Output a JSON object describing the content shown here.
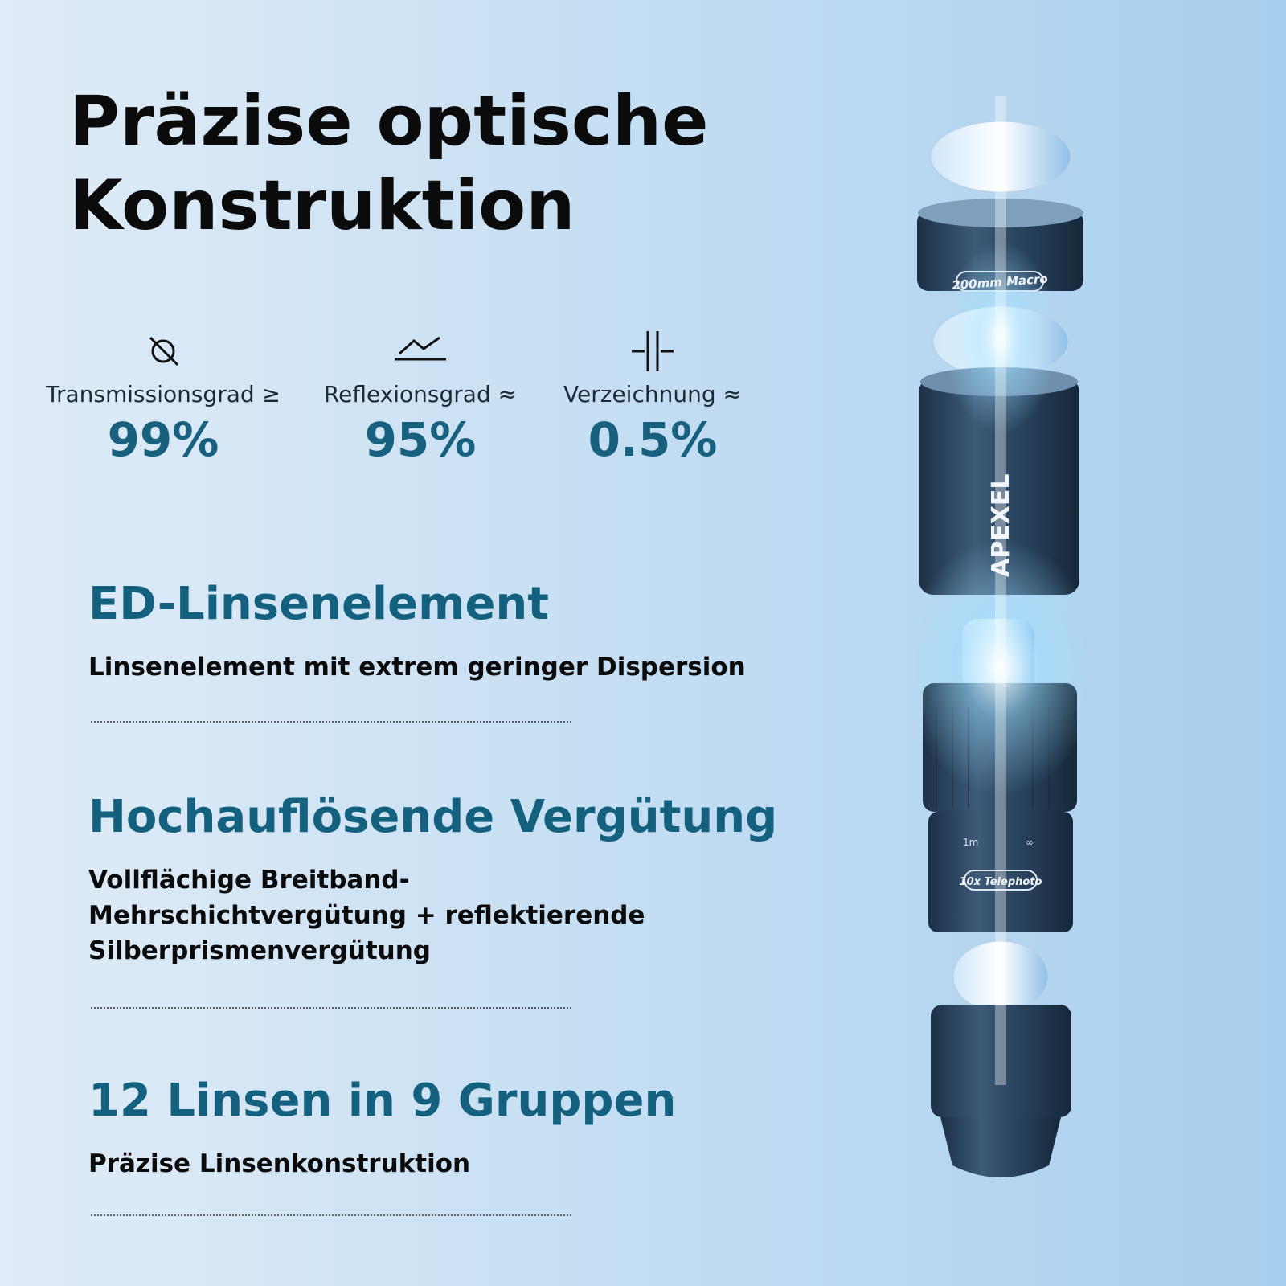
{
  "header": {
    "title_lines": [
      "Präzise optische",
      "Konstruktion"
    ]
  },
  "stats": [
    {
      "label": "Transmissionsgrad ≥",
      "value": "99%"
    },
    {
      "label": "Reflexionsgrad ≈",
      "value": "95%"
    },
    {
      "label": "Verzeichnung ≈",
      "value": "0.5%"
    }
  ],
  "features": [
    {
      "heading": "ED-Linsenelement",
      "text_lines": [
        "Linsenelement mit extrem geringer Dispersion"
      ]
    },
    {
      "heading": "Hochauflösende Vergütung",
      "text_lines": [
        "Vollflächige Breitband-",
        "Mehrschichtvergütung + reflektierende",
        "Silberprismenvergütung"
      ]
    },
    {
      "heading": "12 Linsen in 9 Gruppen",
      "text_lines": [
        "Präzise Linsenkonstruktion"
      ]
    }
  ],
  "product": {
    "top_label": "200mm Macro",
    "brand": "APEXEL",
    "scale_near": "1m",
    "scale_far": "∞",
    "bottom_label": "10x Telephoto"
  }
}
